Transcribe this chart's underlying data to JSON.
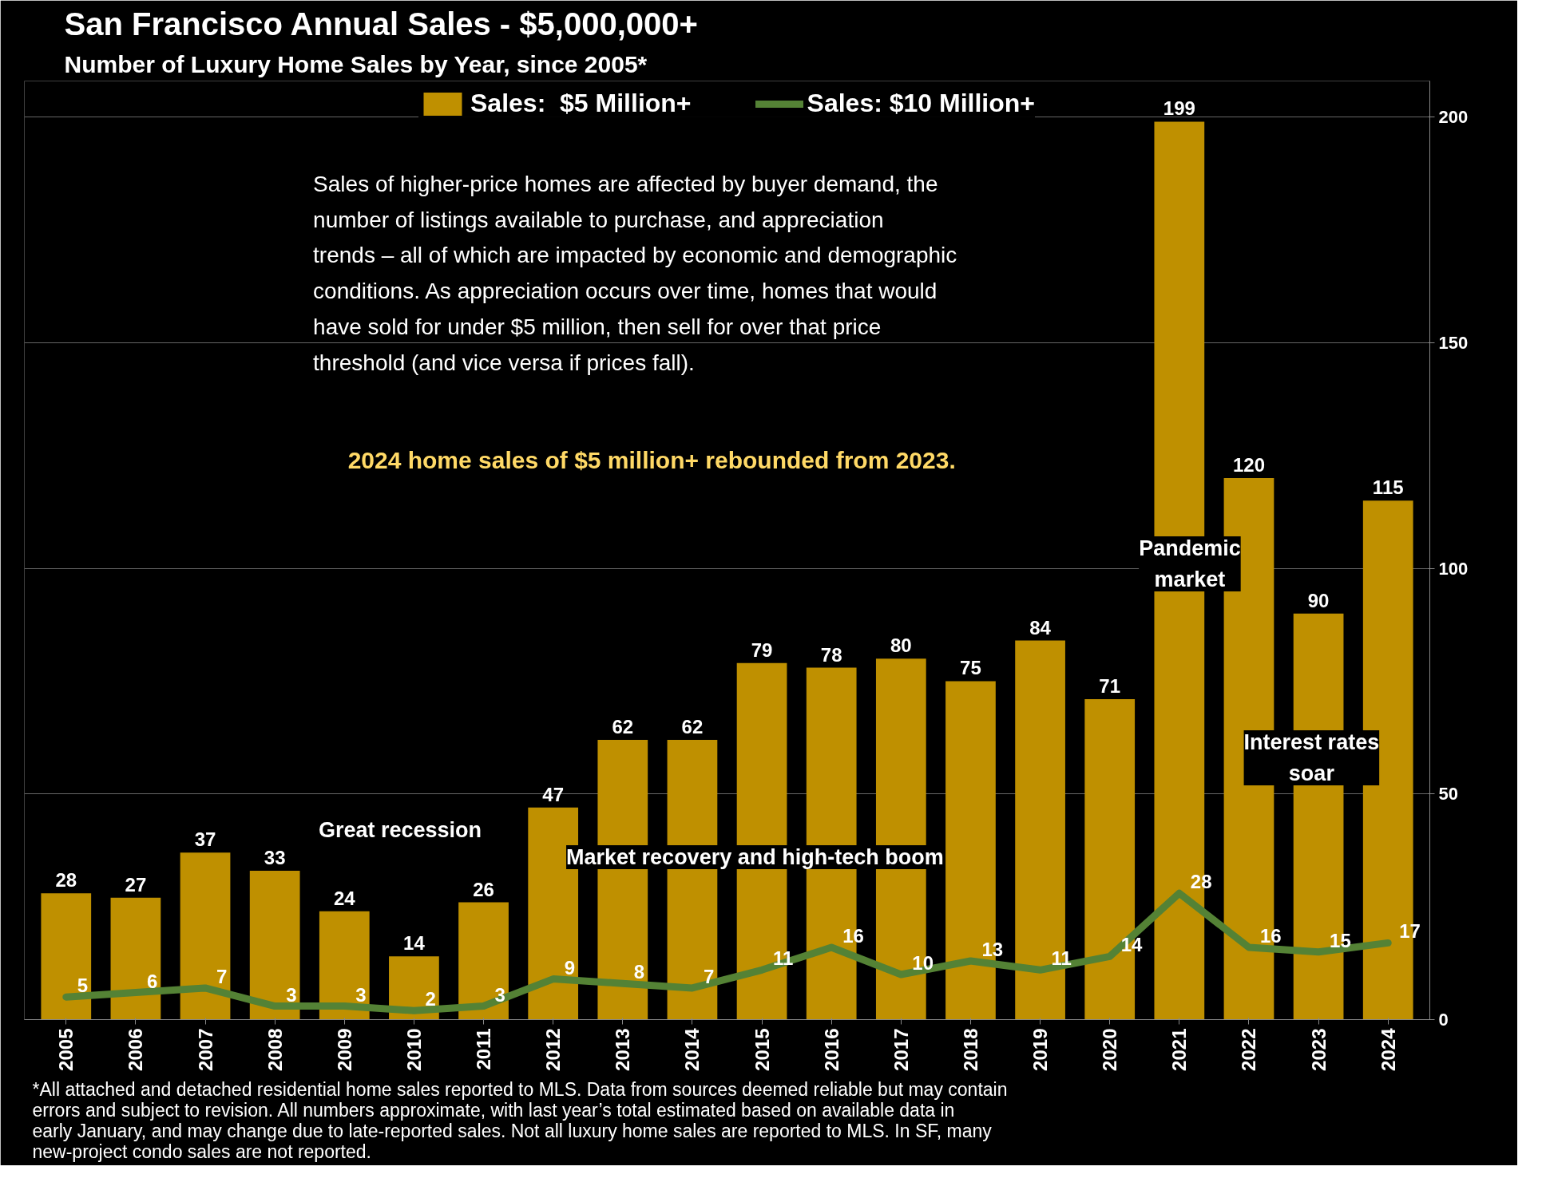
{
  "chart_data": {
    "type": "bar",
    "title": "San Francisco Annual Sales - $5,000,000+",
    "subtitle": "Number of Luxury Home Sales by Year, since 2005*",
    "categories": [
      "2005",
      "2006",
      "2007",
      "2008",
      "2009",
      "2010",
      "2011",
      "2012",
      "2013",
      "2014",
      "2015",
      "2016",
      "2017",
      "2018",
      "2019",
      "2020",
      "2021",
      "2022",
      "2023",
      "2024"
    ],
    "series": [
      {
        "name": "Sales:  $5 Million+",
        "color": "#bf9000",
        "values": [
          28,
          27,
          37,
          33,
          24,
          14,
          26,
          47,
          62,
          62,
          79,
          78,
          80,
          75,
          84,
          71,
          199,
          120,
          90,
          115
        ]
      },
      {
        "name": "Sales: $10 Million+",
        "type": "line",
        "color": "#548235",
        "values": [
          5,
          6,
          7,
          3,
          3,
          2,
          3,
          9,
          8,
          7,
          11,
          16,
          10,
          13,
          11,
          14,
          28,
          16,
          15,
          17
        ]
      }
    ],
    "ylim": [
      0,
      208
    ],
    "yticks": [
      0,
      50,
      100,
      150,
      200
    ],
    "grid": "y",
    "legend": "top",
    "data_labels": true,
    "line_style": "solid",
    "annotations": [
      "Sales of higher-price homes are affected by buyer demand, the number of listings available to purchase, and appreciation trends – all of which are impacted by economic and demographic conditions. As appreciation occurs over time, homes that would have sold for under $5 million, then sell for over that price threshold (and vice versa if prices fall).",
      "2024 home sales of $5 million+ rebounded from 2023.",
      "Great recession",
      "Market recovery and high-tech boom",
      "Pandemic market",
      "Interest rates soar",
      "*All attached and detached residential home sales reported to MLS. Data from sources deemed reliable but may contain errors and subject to revision. All numbers approximate, with last year’s total estimated based on available data in early January, and may change due to late-reported sales. Not all luxury home sales are reported to MLS. In SF, many new-project condo sales are not reported."
    ]
  }
}
